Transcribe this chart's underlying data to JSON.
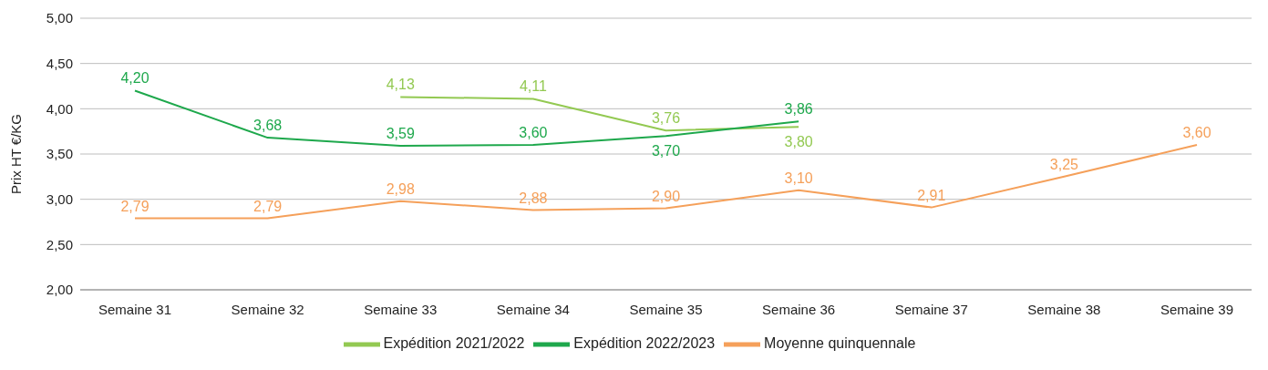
{
  "chart_data": {
    "type": "line",
    "ylabel": "Prix HT €/KG",
    "categories": [
      "Semaine 31",
      "Semaine 32",
      "Semaine 33",
      "Semaine 34",
      "Semaine 35",
      "Semaine 36",
      "Semaine 37",
      "Semaine 38",
      "Semaine 39"
    ],
    "ylim": [
      2,
      5
    ],
    "yticks": [
      {
        "value": 2,
        "label": "2,00"
      },
      {
        "value": 2.5,
        "label": "2,50"
      },
      {
        "value": 3,
        "label": "3,00"
      },
      {
        "value": 3.5,
        "label": "3,50"
      },
      {
        "value": 4,
        "label": "4,00"
      },
      {
        "value": 4.5,
        "label": "4,50"
      },
      {
        "value": 5,
        "label": "5,00"
      }
    ],
    "grid": "y",
    "legend": "bottom",
    "marker": "none",
    "line_style": "solid",
    "series": [
      {
        "name": "Moyenne quinquennale",
        "color": "#f5a05a",
        "values": [
          2.79,
          2.79,
          2.98,
          2.88,
          2.9,
          3.1,
          2.91,
          3.25,
          3.6
        ],
        "value_labels": [
          "2,79",
          "2,79",
          "2,98",
          "2,88",
          "2,90",
          "3,10",
          "2,91",
          "3,25",
          "3,60"
        ]
      },
      {
        "name": "Expédition 2021/2022",
        "color": "#93c952",
        "values": [
          null,
          null,
          4.13,
          4.11,
          3.76,
          3.8,
          null,
          null,
          null
        ],
        "value_labels": [
          null,
          null,
          "4,13",
          "4,11",
          "3,76",
          "3,80",
          null,
          null,
          null
        ]
      },
      {
        "name": "Expédition 2022/2023",
        "color": "#1ea84c",
        "values": [
          4.2,
          3.68,
          3.59,
          3.6,
          3.7,
          3.86,
          null,
          null,
          null
        ],
        "value_labels": [
          "4,20",
          "3,68",
          "3,59",
          "3,60",
          "3,70",
          "3,86",
          null,
          null,
          null
        ]
      }
    ]
  }
}
